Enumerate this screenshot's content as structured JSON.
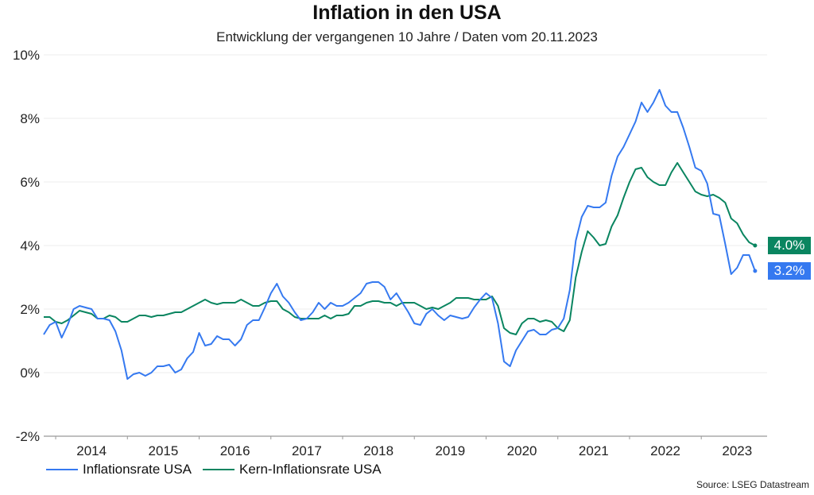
{
  "chart_data": {
    "type": "line",
    "title": "Inflation in den USA",
    "subtitle": "Entwicklung der vergangenen 10 Jahre / Daten vom 20.11.2023",
    "xlabel": "",
    "ylabel": "",
    "x_start": "2013-11",
    "x_end": "2023-10",
    "frequency": "monthly",
    "x_tick_labels": [
      "2014",
      "2015",
      "2016",
      "2017",
      "2018",
      "2019",
      "2020",
      "2021",
      "2022",
      "2023"
    ],
    "ylim": [
      -2,
      10
    ],
    "y_ticks": [
      -2,
      0,
      2,
      4,
      6,
      8,
      10
    ],
    "y_tick_labels": [
      "-2%",
      "0%",
      "2%",
      "4%",
      "6%",
      "8%",
      "10%"
    ],
    "grid": "horizontal",
    "legend_position": "bottom-left",
    "series": [
      {
        "name": "Inflationsrate USA",
        "color": "#3579f0",
        "end_label": "3.2%",
        "values": [
          1.2,
          1.5,
          1.6,
          1.1,
          1.5,
          2.0,
          2.1,
          2.05,
          2.0,
          1.7,
          1.7,
          1.65,
          1.3,
          0.7,
          -0.2,
          -0.05,
          0.0,
          -0.1,
          0.0,
          0.2,
          0.2,
          0.25,
          0.0,
          0.1,
          0.45,
          0.65,
          1.25,
          0.85,
          0.9,
          1.15,
          1.05,
          1.05,
          0.85,
          1.05,
          1.5,
          1.65,
          1.65,
          2.05,
          2.5,
          2.8,
          2.4,
          2.2,
          1.9,
          1.65,
          1.7,
          1.9,
          2.2,
          2.0,
          2.2,
          2.1,
          2.1,
          2.2,
          2.35,
          2.5,
          2.8,
          2.85,
          2.85,
          2.7,
          2.3,
          2.5,
          2.2,
          1.9,
          1.55,
          1.5,
          1.85,
          2.0,
          1.8,
          1.65,
          1.8,
          1.75,
          1.7,
          1.75,
          2.05,
          2.3,
          2.5,
          2.35,
          1.55,
          0.35,
          0.2,
          0.7,
          1.0,
          1.3,
          1.35,
          1.2,
          1.2,
          1.35,
          1.4,
          1.7,
          2.6,
          4.15,
          4.9,
          5.25,
          5.2,
          5.2,
          5.35,
          6.2,
          6.8,
          7.1,
          7.5,
          7.9,
          8.5,
          8.2,
          8.5,
          8.9,
          8.4,
          8.2,
          8.2,
          7.7,
          7.1,
          6.45,
          6.35,
          5.95,
          5.0,
          4.95,
          4.05,
          3.1,
          3.3,
          3.7,
          3.7,
          3.2
        ]
      },
      {
        "name": "Kern-Inflationsrate USA",
        "color": "#0a8560",
        "end_label": "4.0%",
        "values": [
          1.75,
          1.75,
          1.6,
          1.55,
          1.65,
          1.8,
          1.95,
          1.9,
          1.85,
          1.7,
          1.7,
          1.8,
          1.75,
          1.6,
          1.6,
          1.7,
          1.8,
          1.8,
          1.75,
          1.8,
          1.8,
          1.85,
          1.9,
          1.9,
          2.0,
          2.1,
          2.2,
          2.3,
          2.2,
          2.15,
          2.2,
          2.2,
          2.2,
          2.3,
          2.2,
          2.1,
          2.1,
          2.2,
          2.25,
          2.25,
          2.0,
          1.9,
          1.75,
          1.7,
          1.7,
          1.7,
          1.7,
          1.8,
          1.7,
          1.8,
          1.8,
          1.85,
          2.1,
          2.1,
          2.2,
          2.25,
          2.25,
          2.2,
          2.2,
          2.1,
          2.2,
          2.2,
          2.2,
          2.1,
          2.0,
          2.05,
          2.0,
          2.1,
          2.2,
          2.35,
          2.35,
          2.35,
          2.3,
          2.3,
          2.3,
          2.4,
          2.1,
          1.4,
          1.25,
          1.2,
          1.55,
          1.7,
          1.7,
          1.6,
          1.65,
          1.6,
          1.4,
          1.3,
          1.65,
          3.0,
          3.8,
          4.45,
          4.25,
          4.0,
          4.05,
          4.6,
          4.95,
          5.5,
          6.0,
          6.4,
          6.45,
          6.15,
          6.0,
          5.9,
          5.9,
          6.3,
          6.6,
          6.3,
          6.0,
          5.7,
          5.6,
          5.55,
          5.6,
          5.5,
          5.35,
          4.85,
          4.7,
          4.35,
          4.1,
          4.0
        ]
      }
    ],
    "source": "Source: LSEG Datastream"
  }
}
